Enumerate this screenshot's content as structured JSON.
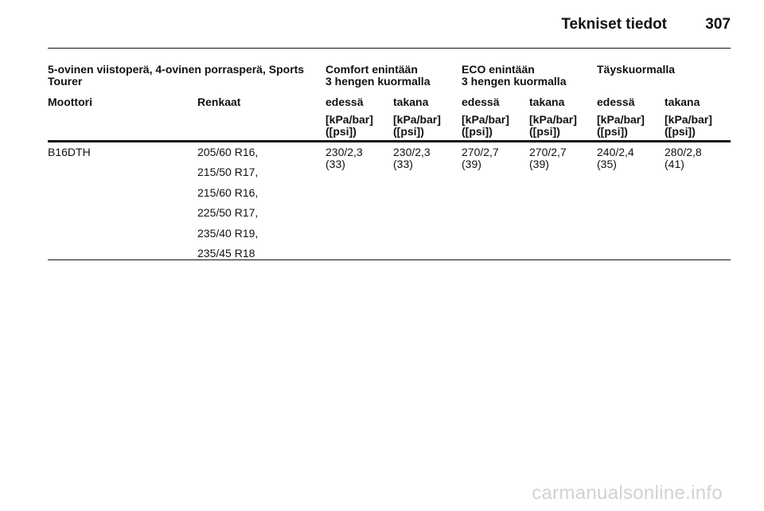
{
  "page": {
    "title": "Tekniset tiedot",
    "number": "307"
  },
  "table": {
    "vehicle_header": "5-ovinen viistoperä, 4-ovinen porrasperä, Sports Tourer",
    "groups": [
      {
        "line1": "Comfort enintään",
        "line2": "3 hengen kuormalla"
      },
      {
        "line1": "ECO enintään",
        "line2": "3 hengen kuormalla"
      },
      {
        "line1": "Täyskuormalla",
        "line2": ""
      }
    ],
    "col_engine": "Moottori",
    "col_tyres": "Renkaat",
    "front": "edessä",
    "rear": "takana",
    "unit_line1": "[kPa/bar]",
    "unit_line2": "([psi])",
    "row": {
      "engine": "B16DTH",
      "tyres": [
        "205/60 R16,",
        "215/50 R17,",
        "215/60 R16,",
        "225/50 R17,",
        "235/40 R19,",
        "235/45 R18"
      ],
      "values": [
        {
          "kpa_bar": "230/2,3",
          "psi": "(33)"
        },
        {
          "kpa_bar": "230/2,3",
          "psi": "(33)"
        },
        {
          "kpa_bar": "270/2,7",
          "psi": "(39)"
        },
        {
          "kpa_bar": "270/2,7",
          "psi": "(39)"
        },
        {
          "kpa_bar": "240/2,4",
          "psi": "(35)"
        },
        {
          "kpa_bar": "280/2,8",
          "psi": "(41)"
        }
      ]
    }
  },
  "watermark": "carmanualsonline.info"
}
